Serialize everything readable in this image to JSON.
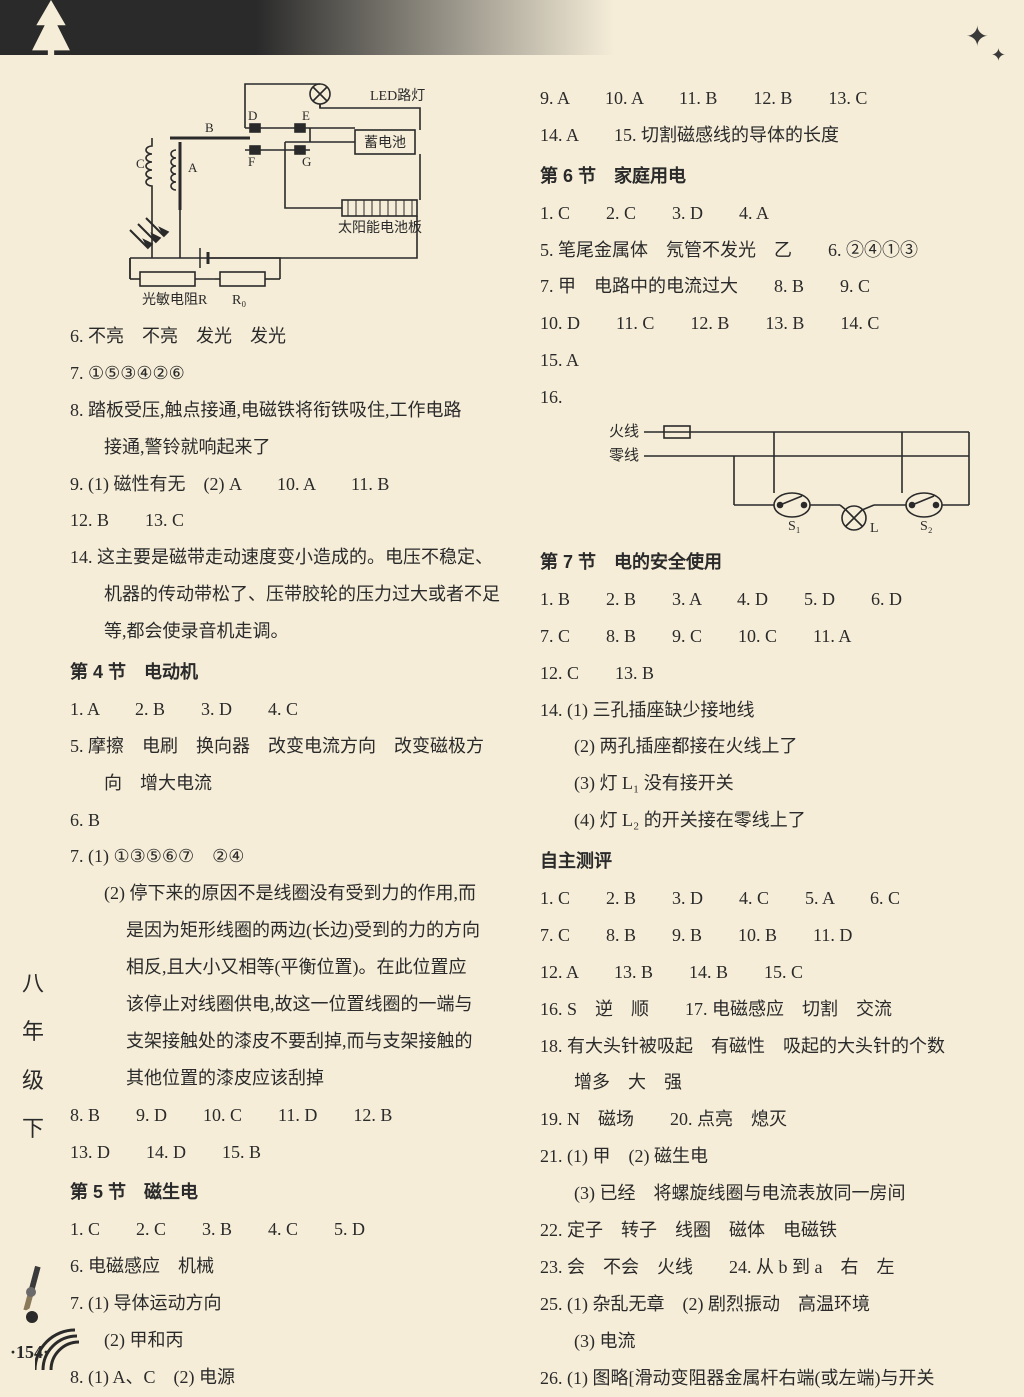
{
  "page": {
    "number": "·154·",
    "side_label": [
      "八",
      "年",
      "级",
      "下"
    ]
  },
  "colors": {
    "background": "#f5edd8",
    "text": "#2a2a2a",
    "header_dark": "#2a2a2a"
  },
  "typography": {
    "body_font": "SimSun",
    "heading_font": "SimHei",
    "body_size_pt": 13,
    "line_height": 2.05
  },
  "circuit": {
    "labels": {
      "led": "LED路灯",
      "battery": "蓄电池",
      "solar": "太阳能电池板",
      "resistor": "光敏电阻R",
      "r0": "R₀",
      "B": "B",
      "D": "D",
      "E": "E",
      "F": "F",
      "G": "G",
      "A": "A",
      "C": "C"
    }
  },
  "wiring": {
    "labels": {
      "live": "火线",
      "neutral": "零线",
      "s1": "S₁",
      "s2": "S₂",
      "lamp": "L"
    }
  },
  "left_column": [
    {
      "type": "circuit"
    },
    {
      "n": "6.",
      "t": "不亮　不亮　发光　发光"
    },
    {
      "n": "7.",
      "t": "①⑤③④②⑥"
    },
    {
      "n": "8.",
      "t": "踏板受压,触点接通,电磁铁将衔铁吸住,工作电路"
    },
    {
      "cont": true,
      "t": "接通,警铃就响起来了"
    },
    {
      "n": "9.",
      "t": "(1) 磁性有无　(2) A　　10. A　　11. B"
    },
    {
      "n": "12.",
      "t": "B　　13. C"
    },
    {
      "n": "14.",
      "t": "这主要是磁带走动速度变小造成的。电压不稳定、"
    },
    {
      "cont": true,
      "t": "机器的传动带松了、压带胶轮的压力过大或者不足"
    },
    {
      "cont": true,
      "t": "等,都会使录音机走调。"
    },
    {
      "head": true,
      "t": "第 4 节　电动机"
    },
    {
      "n": "1.",
      "t": "A　　2. B　　3. D　　4. C"
    },
    {
      "n": "5.",
      "t": "摩擦　电刷　换向器　改变电流方向　改变磁极方"
    },
    {
      "cont": true,
      "t": "向　增大电流"
    },
    {
      "n": "6.",
      "t": "B"
    },
    {
      "n": "7.",
      "t": "(1) ①③⑤⑥⑦　②④"
    },
    {
      "cont": true,
      "t": "(2) 停下来的原因不是线圈没有受到力的作用,而"
    },
    {
      "cont2": true,
      "t": "是因为矩形线圈的两边(长边)受到的力的方向"
    },
    {
      "cont2": true,
      "t": "相反,且大小又相等(平衡位置)。在此位置应"
    },
    {
      "cont2": true,
      "t": "该停止对线圈供电,故这一位置线圈的一端与"
    },
    {
      "cont2": true,
      "t": "支架接触处的漆皮不要刮掉,而与支架接触的"
    },
    {
      "cont2": true,
      "t": "其他位置的漆皮应该刮掉"
    },
    {
      "n": "8.",
      "t": "B　　9. D　　10. C　　11. D　　12. B"
    },
    {
      "n": "13.",
      "t": "D　　14. D　　15. B"
    },
    {
      "head": true,
      "t": "第 5 节　磁生电"
    },
    {
      "n": "1.",
      "t": "C　　2. C　　3. B　　4. C　　5. D"
    },
    {
      "n": "6.",
      "t": "电磁感应　机械"
    },
    {
      "n": "7.",
      "t": "(1) 导体运动方向"
    },
    {
      "cont": true,
      "t": "(2) 甲和丙"
    },
    {
      "n": "8.",
      "t": "(1) A、C　(2) 电源"
    }
  ],
  "right_column": [
    {
      "n": "9.",
      "t": "A　　10. A　　11. B　　12. B　　13. C"
    },
    {
      "n": "14.",
      "t": "A　　15. 切割磁感线的导体的长度"
    },
    {
      "head": true,
      "t": "第 6 节　家庭用电"
    },
    {
      "n": "1.",
      "t": "C　　2. C　　3. D　　4. A"
    },
    {
      "n": "5.",
      "t": "笔尾金属体　氖管不发光　乙　　6. ②④①③"
    },
    {
      "n": "7.",
      "t": "甲　电路中的电流过大　　8. B　　9. C"
    },
    {
      "n": "10.",
      "t": "D　　11. C　　12. B　　13. B　　14. C"
    },
    {
      "n": "15.",
      "t": "A"
    },
    {
      "n": "16.",
      "t": ""
    },
    {
      "type": "wiring"
    },
    {
      "head": true,
      "t": "第 7 节　电的安全使用"
    },
    {
      "n": "1.",
      "t": "B　　2. B　　3. A　　4. D　　5. D　　6. D"
    },
    {
      "n": "7.",
      "t": "C　　8. B　　9. C　　10. C　　11. A"
    },
    {
      "n": "12.",
      "t": "C　　13. B"
    },
    {
      "n": "14.",
      "t": "(1) 三孔插座缺少接地线"
    },
    {
      "cont": true,
      "t": "(2) 两孔插座都接在火线上了"
    },
    {
      "cont": true,
      "t": "(3) 灯 L₁ 没有接开关"
    },
    {
      "cont": true,
      "t": "(4) 灯 L₂ 的开关接在零线上了"
    },
    {
      "head": true,
      "t": "自主测评"
    },
    {
      "n": "1.",
      "t": "C　　2. B　　3. D　　4. C　　5. A　　6. C"
    },
    {
      "n": "7.",
      "t": "C　　8. B　　9. B　　10. B　　11. D"
    },
    {
      "n": "12.",
      "t": "A　　13. B　　14. B　　15. C"
    },
    {
      "n": "16.",
      "t": "S　逆　顺　　17. 电磁感应　切割　交流"
    },
    {
      "n": "18.",
      "t": "有大头针被吸起　有磁性　吸起的大头针的个数"
    },
    {
      "cont": true,
      "t": "增多　大　强"
    },
    {
      "n": "19.",
      "t": "N　磁场　　20. 点亮　熄灭"
    },
    {
      "n": "21.",
      "t": "(1) 甲　(2) 磁生电"
    },
    {
      "cont": true,
      "t": "(3) 已经　将螺旋线圈与电流表放同一房间"
    },
    {
      "n": "22.",
      "t": "定子　转子　线圈　磁体　电磁铁"
    },
    {
      "n": "23.",
      "t": "会　不会　火线　　24. 从 b 到 a　右　左"
    },
    {
      "n": "25.",
      "t": "(1) 杂乱无章　(2) 剧烈振动　高温环境"
    },
    {
      "cont": true,
      "t": "(3) 电流"
    },
    {
      "n": "26.",
      "t": "(1) 图略[滑动变阻器金属杆右端(或左端)与开关"
    }
  ]
}
